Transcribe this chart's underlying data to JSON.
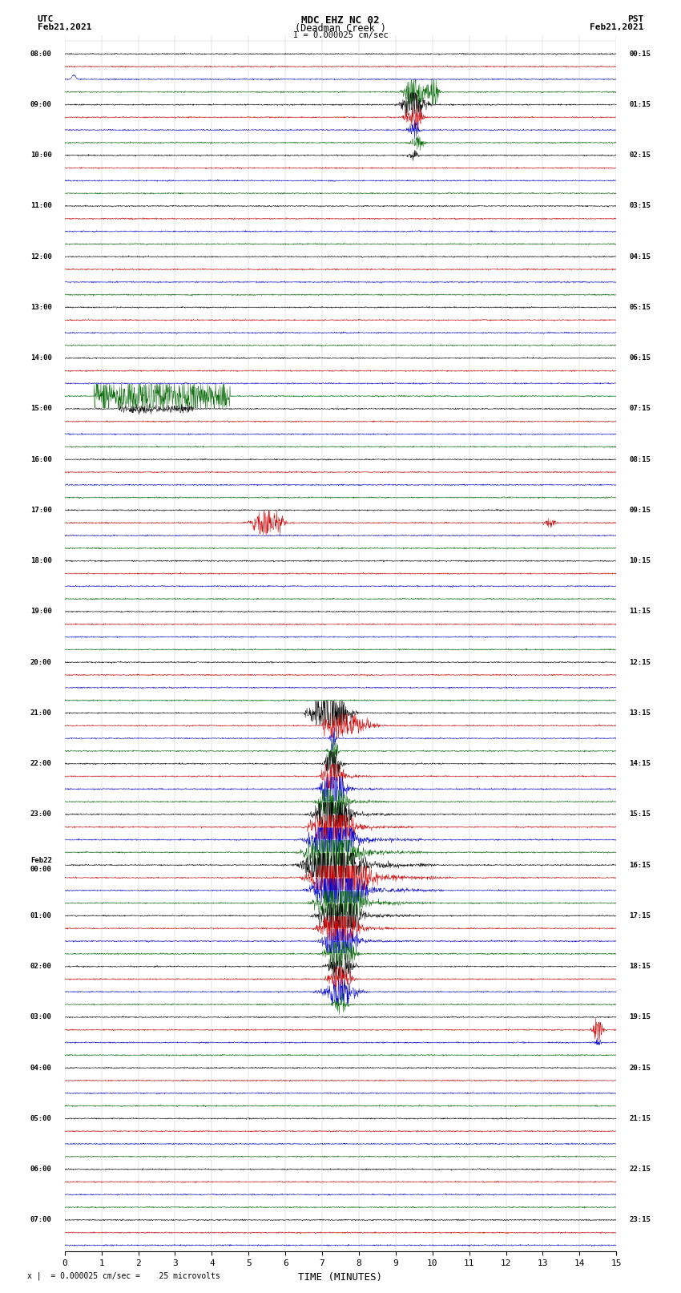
{
  "title_line1": "MDC EHZ NC 02",
  "title_line2": "(Deadman Creek )",
  "title_line3": "I = 0.000025 cm/sec",
  "label_utc": "UTC",
  "label_utc_date": "Feb21,2021",
  "label_pst": "PST",
  "label_pst_date": "Feb21,2021",
  "xlabel": "TIME (MINUTES)",
  "scale_label": "x |  = 0.000025 cm/sec =    25 microvolts",
  "bg_color": "#ffffff",
  "grid_color": "#999999",
  "trace_colors": [
    "#000000",
    "#cc0000",
    "#0000cc",
    "#006600"
  ],
  "left_labels": [
    "08:00",
    "",
    "",
    "",
    "09:00",
    "",
    "",
    "",
    "10:00",
    "",
    "",
    "",
    "11:00",
    "",
    "",
    "",
    "12:00",
    "",
    "",
    "",
    "13:00",
    "",
    "",
    "",
    "14:00",
    "",
    "",
    "",
    "15:00",
    "",
    "",
    "",
    "16:00",
    "",
    "",
    "",
    "17:00",
    "",
    "",
    "",
    "18:00",
    "",
    "",
    "",
    "19:00",
    "",
    "",
    "",
    "20:00",
    "",
    "",
    "",
    "21:00",
    "",
    "",
    "",
    "22:00",
    "",
    "",
    "",
    "23:00",
    "",
    "",
    "",
    "Feb22\n00:00",
    "",
    "",
    "",
    "01:00",
    "",
    "",
    "",
    "02:00",
    "",
    "",
    "",
    "03:00",
    "",
    "",
    "",
    "04:00",
    "",
    "",
    "",
    "05:00",
    "",
    "",
    "",
    "06:00",
    "",
    "",
    "",
    "07:00",
    "",
    ""
  ],
  "right_labels": [
    "00:15",
    "",
    "",
    "",
    "01:15",
    "",
    "",
    "",
    "02:15",
    "",
    "",
    "",
    "03:15",
    "",
    "",
    "",
    "04:15",
    "",
    "",
    "",
    "05:15",
    "",
    "",
    "",
    "06:15",
    "",
    "",
    "",
    "07:15",
    "",
    "",
    "",
    "08:15",
    "",
    "",
    "",
    "09:15",
    "",
    "",
    "",
    "10:15",
    "",
    "",
    "",
    "11:15",
    "",
    "",
    "",
    "12:15",
    "",
    "",
    "",
    "13:15",
    "",
    "",
    "",
    "14:15",
    "",
    "",
    "",
    "15:15",
    "",
    "",
    "",
    "16:15",
    "",
    "",
    "",
    "17:15",
    "",
    "",
    "",
    "18:15",
    "",
    "",
    "",
    "19:15",
    "",
    "",
    "",
    "20:15",
    "",
    "",
    "",
    "21:15",
    "",
    "",
    "",
    "22:15",
    "",
    "",
    "",
    "23:15",
    "",
    ""
  ],
  "n_rows": 95,
  "x_ticks": [
    0,
    1,
    2,
    3,
    4,
    5,
    6,
    7,
    8,
    9,
    10,
    11,
    12,
    13,
    14,
    15
  ],
  "x_lim": [
    0,
    15
  ],
  "noise_amplitude": 0.06
}
